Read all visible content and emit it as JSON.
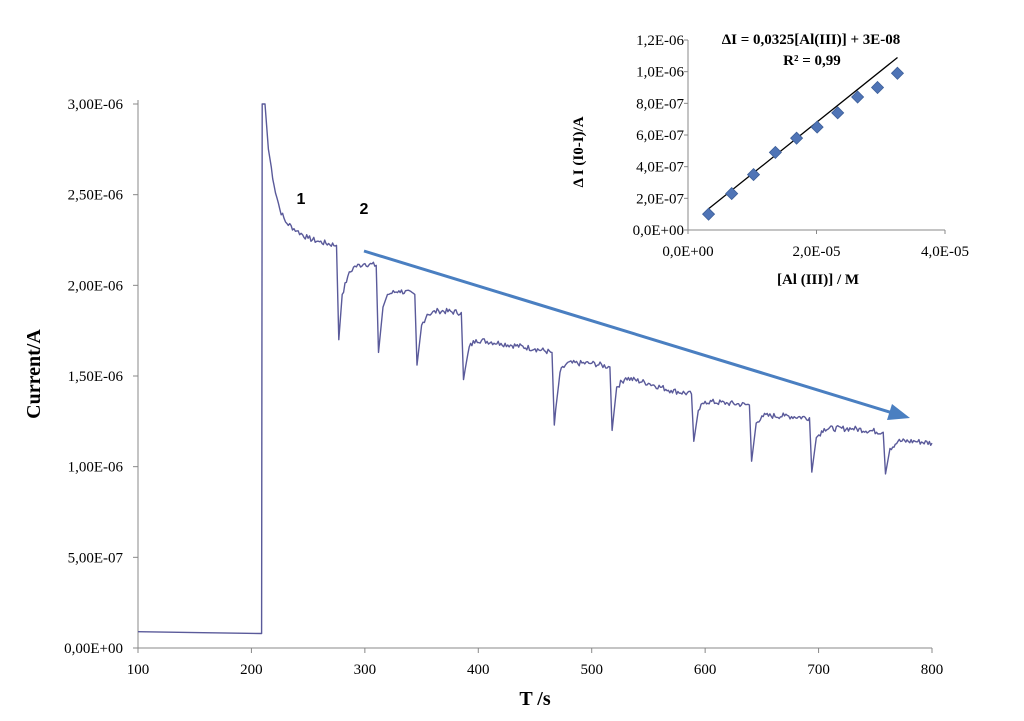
{
  "chart_data": [
    {
      "type": "line",
      "xlabel": "T /s",
      "ylabel": "Current/A",
      "xlim": [
        100,
        800
      ],
      "ylim": [
        0,
        3e-06
      ],
      "x_ticks": [
        "100",
        "200",
        "300",
        "400",
        "500",
        "600",
        "700",
        "800"
      ],
      "y_ticks": [
        "0,00E+00",
        "5,00E-07",
        "1,00E-06",
        "1,50E-06",
        "2,00E-06",
        "2,50E-06",
        "3,00E-06"
      ],
      "annotations": [
        "1",
        "2"
      ],
      "colors": {
        "trace": "#5a5a9a",
        "arrow": "#4a7fc1"
      },
      "series": [
        {
          "values": [
            [
              100,
              9e-08
            ],
            [
              150,
              8.5e-08
            ],
            [
              209,
              8e-08
            ],
            [
              209.5,
              3e-06
            ],
            [
              212,
              3e-06
            ],
            [
              215,
              2.75e-06
            ],
            [
              220,
              2.55e-06
            ],
            [
              225,
              2.42e-06
            ],
            [
              230,
              2.35e-06
            ],
            [
              240,
              2.3e-06
            ],
            [
              250,
              2.26e-06
            ],
            [
              260,
              2.24e-06
            ],
            [
              275,
              2.22e-06
            ],
            [
              277,
              1.7e-06
            ],
            [
              280,
              1.95e-06
            ],
            [
              285,
              2.05e-06
            ],
            [
              290,
              2.1e-06
            ],
            [
              300,
              2.12e-06
            ],
            [
              310,
              2.11e-06
            ],
            [
              312,
              1.63e-06
            ],
            [
              316,
              1.88e-06
            ],
            [
              320,
              1.95e-06
            ],
            [
              330,
              1.97e-06
            ],
            [
              344,
              1.95e-06
            ],
            [
              346,
              1.56e-06
            ],
            [
              350,
              1.78e-06
            ],
            [
              355,
              1.84e-06
            ],
            [
              365,
              1.86e-06
            ],
            [
              385,
              1.85e-06
            ],
            [
              387,
              1.48e-06
            ],
            [
              392,
              1.66e-06
            ],
            [
              398,
              1.7e-06
            ],
            [
              420,
              1.68e-06
            ],
            [
              450,
              1.65e-06
            ],
            [
              465,
              1.63e-06
            ],
            [
              467,
              1.23e-06
            ],
            [
              472,
              1.52e-06
            ],
            [
              478,
              1.57e-06
            ],
            [
              500,
              1.57e-06
            ],
            [
              516,
              1.55e-06
            ],
            [
              518,
              1.2e-06
            ],
            [
              522,
              1.44e-06
            ],
            [
              530,
              1.49e-06
            ],
            [
              550,
              1.46e-06
            ],
            [
              570,
              1.42e-06
            ],
            [
              588,
              1.4e-06
            ],
            [
              590,
              1.14e-06
            ],
            [
              594,
              1.31e-06
            ],
            [
              600,
              1.36e-06
            ],
            [
              620,
              1.35e-06
            ],
            [
              639,
              1.34e-06
            ],
            [
              641,
              1.03e-06
            ],
            [
              645,
              1.24e-06
            ],
            [
              650,
              1.28e-06
            ],
            [
              670,
              1.28e-06
            ],
            [
              692,
              1.27e-06
            ],
            [
              694,
              9.7e-07
            ],
            [
              698,
              1.16e-06
            ],
            [
              705,
              1.21e-06
            ],
            [
              730,
              1.21e-06
            ],
            [
              757,
              1.19e-06
            ],
            [
              759,
              9.6e-07
            ],
            [
              763,
              1.1e-06
            ],
            [
              770,
              1.14e-06
            ],
            [
              785,
              1.14e-06
            ],
            [
              800,
              1.13e-06
            ]
          ]
        }
      ]
    },
    {
      "type": "scatter",
      "title": "ΔI = 0,0325[Al(III)] + 3E-08",
      "subtitle": "R² = 0,99",
      "xlabel": "[Al (III)]  / M",
      "ylabel": "Δ I (I0-I)/A",
      "xlim": [
        0,
        4e-05
      ],
      "ylim": [
        0,
        1.2e-06
      ],
      "x_ticks": [
        "0,0E+00",
        "2,0E-05",
        "4,0E-05"
      ],
      "y_ticks": [
        "0,0E+00",
        "2,0E-07",
        "4,0E-07",
        "6,0E-07",
        "8,0E-07",
        "1,0E-06",
        "1,2E-06"
      ],
      "colors": {
        "marker": "#4f74b6",
        "trendline": "#000000"
      },
      "series": [
        {
          "x": [
            3.2e-06,
            6.8e-06,
            1.02e-05,
            1.36e-05,
            1.69e-05,
            2.01e-05,
            2.33e-05,
            2.64e-05,
            2.95e-05,
            3.26e-05
          ],
          "y": [
            1e-07,
            2.3e-07,
            3.5e-07,
            4.9e-07,
            5.8e-07,
            6.5e-07,
            7.4e-07,
            8.4e-07,
            9e-07,
            9.9e-07
          ]
        }
      ],
      "trendline": {
        "slope": 0.0325,
        "intercept": 3e-08,
        "x_range": [
          3.2e-06,
          3.26e-05
        ]
      }
    }
  ]
}
